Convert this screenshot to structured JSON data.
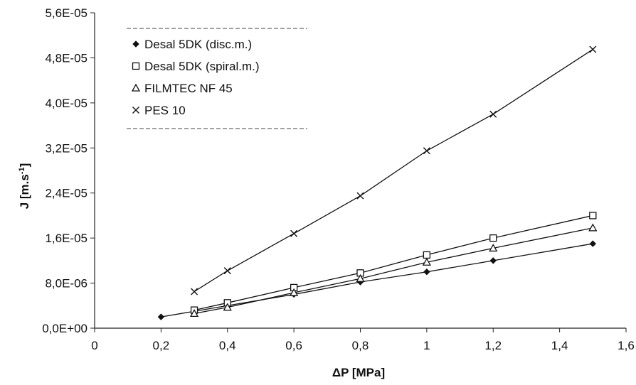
{
  "chart_data": {
    "type": "line",
    "xlabel": "ΔP [MPa]",
    "ylabel": "J [m.s-1]",
    "xlim": [
      0,
      1.6
    ],
    "ylim": [
      0,
      5.6e-05
    ],
    "x_ticks": [
      "0",
      "0,2",
      "0,4",
      "0,6",
      "0,8",
      "1",
      "1,2",
      "1,4",
      "1,6"
    ],
    "y_ticks": [
      "0,0E+00",
      "8,0E-06",
      "1,6E-05",
      "2,4E-05",
      "3,2E-05",
      "4,0E-05",
      "4,8E-05",
      "5,6E-05"
    ],
    "grid": false,
    "legend_position": "top-left",
    "series": [
      {
        "name": "Desal 5DK (disc.m.)",
        "marker": "filled-diamond",
        "points": [
          [
            0.2,
            2e-06
          ],
          [
            0.3,
            3e-06
          ],
          [
            0.4,
            4e-06
          ],
          [
            0.6,
            6e-06
          ],
          [
            0.8,
            8.2e-06
          ],
          [
            1.0,
            1e-05
          ],
          [
            1.2,
            1.2e-05
          ],
          [
            1.5,
            1.5e-05
          ]
        ]
      },
      {
        "name": "Desal 5DK (spiral.m.)",
        "marker": "open-square",
        "points": [
          [
            0.3,
            3.2e-06
          ],
          [
            0.4,
            4.5e-06
          ],
          [
            0.6,
            7.2e-06
          ],
          [
            0.8,
            9.8e-06
          ],
          [
            1.0,
            1.3e-05
          ],
          [
            1.2,
            1.6e-05
          ],
          [
            1.5,
            2e-05
          ]
        ]
      },
      {
        "name": "FILMTEC NF 45",
        "marker": "open-triangle",
        "points": [
          [
            0.3,
            2.6e-06
          ],
          [
            0.4,
            3.7e-06
          ],
          [
            0.6,
            6.3e-06
          ],
          [
            0.8,
            8.8e-06
          ],
          [
            1.0,
            1.17e-05
          ],
          [
            1.2,
            1.42e-05
          ],
          [
            1.5,
            1.78e-05
          ]
        ]
      },
      {
        "name": "PES 10",
        "marker": "cross",
        "points": [
          [
            0.3,
            6.5e-06
          ],
          [
            0.4,
            1.02e-05
          ],
          [
            0.6,
            1.68e-05
          ],
          [
            0.8,
            2.35e-05
          ],
          [
            1.0,
            3.15e-05
          ],
          [
            1.2,
            3.8e-05
          ],
          [
            1.5,
            4.95e-05
          ]
        ]
      }
    ]
  }
}
